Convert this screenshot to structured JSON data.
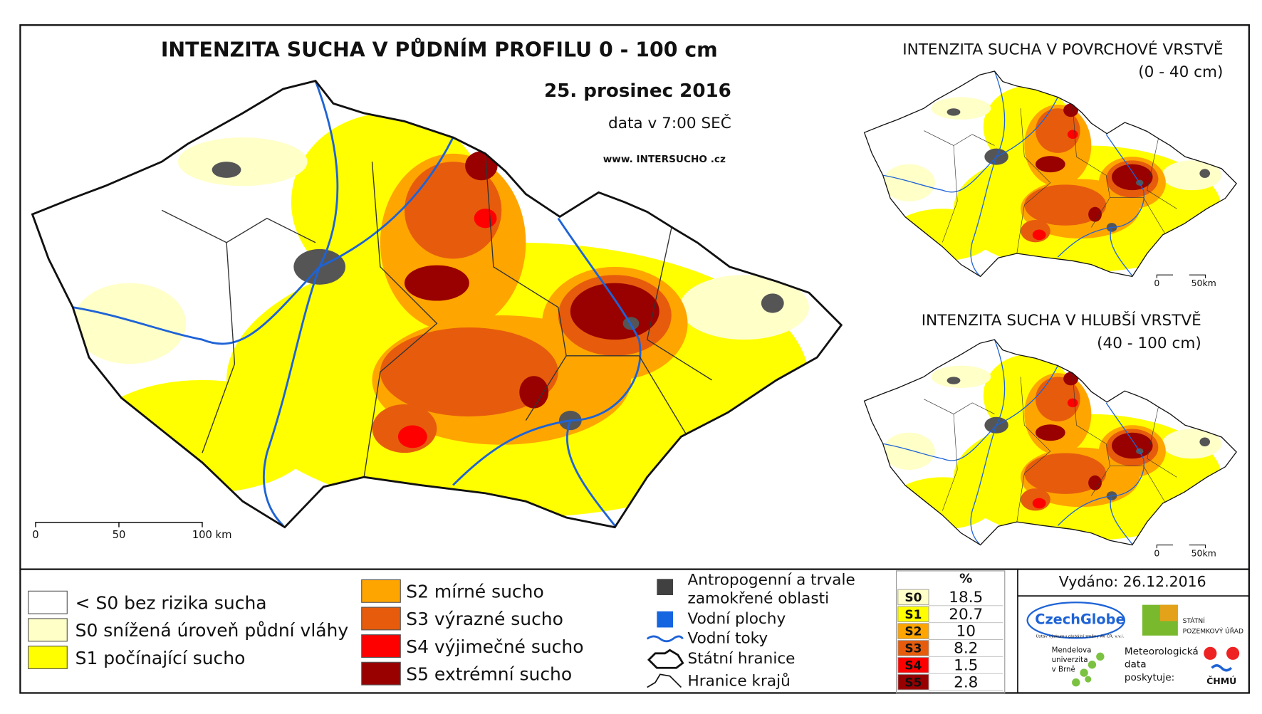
{
  "main_map": {
    "title": "INTENZITA SUCHA V PŮDNÍM PROFILU 0 - 100 cm",
    "date": "25. prosinec 2016",
    "data_time": "data v 7:00 SEČ",
    "website": "www. INTERSUCHO .cz",
    "scale": [
      "0",
      "50",
      "100 km"
    ]
  },
  "surface_map": {
    "title": "INTENZITA SUCHA V POVRCHOVÉ VRSTVĚ",
    "depth": "(0 - 40 cm)",
    "scale": [
      "0",
      "50km"
    ]
  },
  "deep_map": {
    "title": "INTENZITA SUCHA V HLUBŠÍ VRSTVĚ",
    "depth": "(40 - 100 cm)",
    "scale": [
      "0",
      "50km"
    ]
  },
  "legend": {
    "classes": [
      {
        "label": "< S0 bez rizika sucha",
        "color": "#ffffff"
      },
      {
        "label": "S0 snížená úroveň půdní vláhy",
        "color": "#ffffc8"
      },
      {
        "label": "S1 počínající sucho",
        "color": "#ffff00"
      },
      {
        "label": "S2 mírné sucho",
        "color": "#ffa500"
      },
      {
        "label": "S3 výrazné sucho",
        "color": "#e65c0c"
      },
      {
        "label": "S4 výjimečné sucho",
        "color": "#ff0000"
      },
      {
        "label": "S5 extrémní sucho",
        "color": "#990000"
      }
    ],
    "symbols": [
      {
        "lines": [
          "Antropogenní a trvale",
          "zamokřené oblasti"
        ]
      },
      {
        "lines": [
          "Vodní plochy"
        ]
      },
      {
        "lines": [
          "Vodní toky"
        ]
      },
      {
        "lines": [
          "Státní hranice"
        ]
      },
      {
        "lines": [
          "Hranice krajů"
        ]
      }
    ]
  },
  "stats": {
    "header": "%",
    "rows": [
      {
        "class": "S0",
        "color": "#ffffc8",
        "percent": 18.5
      },
      {
        "class": "S1",
        "color": "#ffff00",
        "percent": 20.7
      },
      {
        "class": "S2",
        "color": "#ffa500",
        "percent": 10.0
      },
      {
        "class": "S3",
        "color": "#e65c0c",
        "percent": 8.2
      },
      {
        "class": "S4",
        "color": "#ff0000",
        "percent": 1.5
      },
      {
        "class": "S5",
        "color": "#990000",
        "percent": 2.8
      }
    ]
  },
  "issued": "Vydáno: 26.12.2016",
  "logos": {
    "czechglobe": "CzechGlobe",
    "czechglobe_sub": "Ústav výzkumu globální změny AV ČR, v.v.i.",
    "spu": [
      "STÁTNÍ",
      "POZEMKOVÝ ÚŘAD"
    ],
    "mendelu": [
      "Mendelova",
      "univerzita",
      "v Brně"
    ],
    "chmu_note": [
      "Meteorologická",
      "data",
      "poskytuje:"
    ],
    "chmu": "ČHMÚ"
  }
}
